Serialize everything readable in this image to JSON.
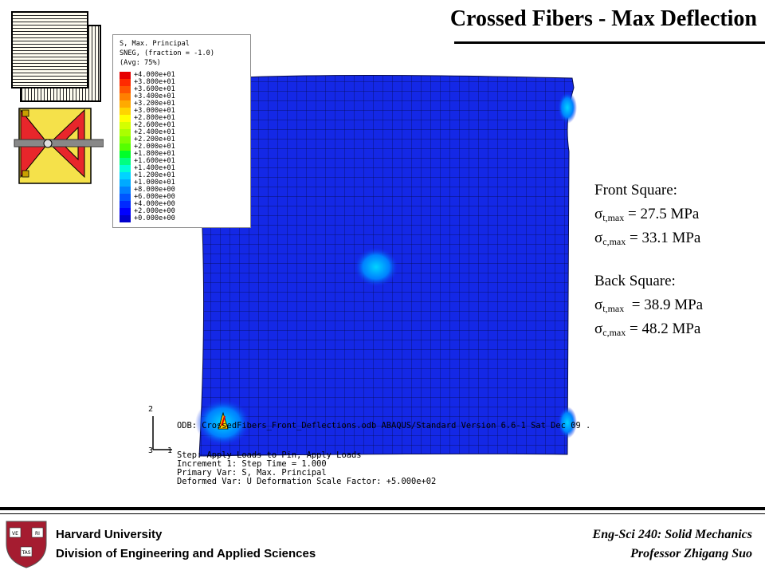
{
  "slide": {
    "title": "Crossed Fibers - Max Deflection"
  },
  "legend": {
    "header": [
      "S, Max. Principal",
      "SNEG, (fraction = -1.0)",
      "(Avg: 75%)"
    ],
    "items": [
      {
        "label": "+4.000e+01",
        "color": "#e60000"
      },
      {
        "label": "+3.800e+01",
        "color": "#ff2a00"
      },
      {
        "label": "+3.600e+01",
        "color": "#ff5500"
      },
      {
        "label": "+3.400e+01",
        "color": "#ff8000"
      },
      {
        "label": "+3.200e+01",
        "color": "#ffaa00"
      },
      {
        "label": "+3.000e+01",
        "color": "#ffd400"
      },
      {
        "label": "+2.800e+01",
        "color": "#ffff00"
      },
      {
        "label": "+2.600e+01",
        "color": "#d4ff00"
      },
      {
        "label": "+2.400e+01",
        "color": "#aaff00"
      },
      {
        "label": "+2.200e+01",
        "color": "#80ff00"
      },
      {
        "label": "+2.000e+01",
        "color": "#55ff00"
      },
      {
        "label": "+1.800e+01",
        "color": "#00ff2a"
      },
      {
        "label": "+1.600e+01",
        "color": "#00ff80"
      },
      {
        "label": "+1.400e+01",
        "color": "#00ffd4"
      },
      {
        "label": "+1.200e+01",
        "color": "#00d4ff"
      },
      {
        "label": "+1.000e+01",
        "color": "#00aaff"
      },
      {
        "label": "+8.000e+00",
        "color": "#0080ff"
      },
      {
        "label": "+6.000e+00",
        "color": "#0055ff"
      },
      {
        "label": "+4.000e+00",
        "color": "#002aff"
      },
      {
        "label": "+2.000e+00",
        "color": "#0000ff"
      },
      {
        "label": "+0.000e+00",
        "color": "#0000cc"
      }
    ]
  },
  "annotation": {
    "front_title": "Front Square:",
    "front_tension": {
      "symbol": "σ",
      "sub": "t,max",
      "value": " = 27.5 MPa"
    },
    "front_compression": {
      "symbol": "σ",
      "sub": "c,max",
      "value": " = 33.1 MPa"
    },
    "back_title": "Back Square:",
    "back_tension": {
      "symbol": "σ",
      "sub": "t,max",
      "value": "  = 38.9 MPa"
    },
    "back_compression": {
      "symbol": "σ",
      "sub": "c,max",
      "value": " = 48.2 MPa"
    }
  },
  "odb_info": {
    "odb_line": "ODB: CrossedFibers_Front_Deflections.odb    ABAQUS/Standard Version 6.6-1    Sat Dec 09 .",
    "lines": [
      "Step: Apply Loads to Pin, Apply Loads",
      "Increment    1: Step Time =    1.000",
      "Primary Var: S, Max. Principal",
      "Deformed Var: U   Deformation Scale Factor: +5.000e+02"
    ],
    "axis_2": "2",
    "axis_3": "3",
    "axis_1": "1"
  },
  "colors": {
    "mesh_fill": "#1428e6",
    "mesh_line": "#000033",
    "hot_spot": "#ffd400"
  },
  "footer": {
    "institution": "Harvard University",
    "division": "Division of Engineering and Applied Sciences",
    "course": "Eng-Sci 240: Solid Mechanics",
    "professor": "Professor Zhigang Suo"
  },
  "icons": [
    "stacked-squares-icon",
    "pin-fixture-icon",
    "harvard-shield-logo"
  ]
}
